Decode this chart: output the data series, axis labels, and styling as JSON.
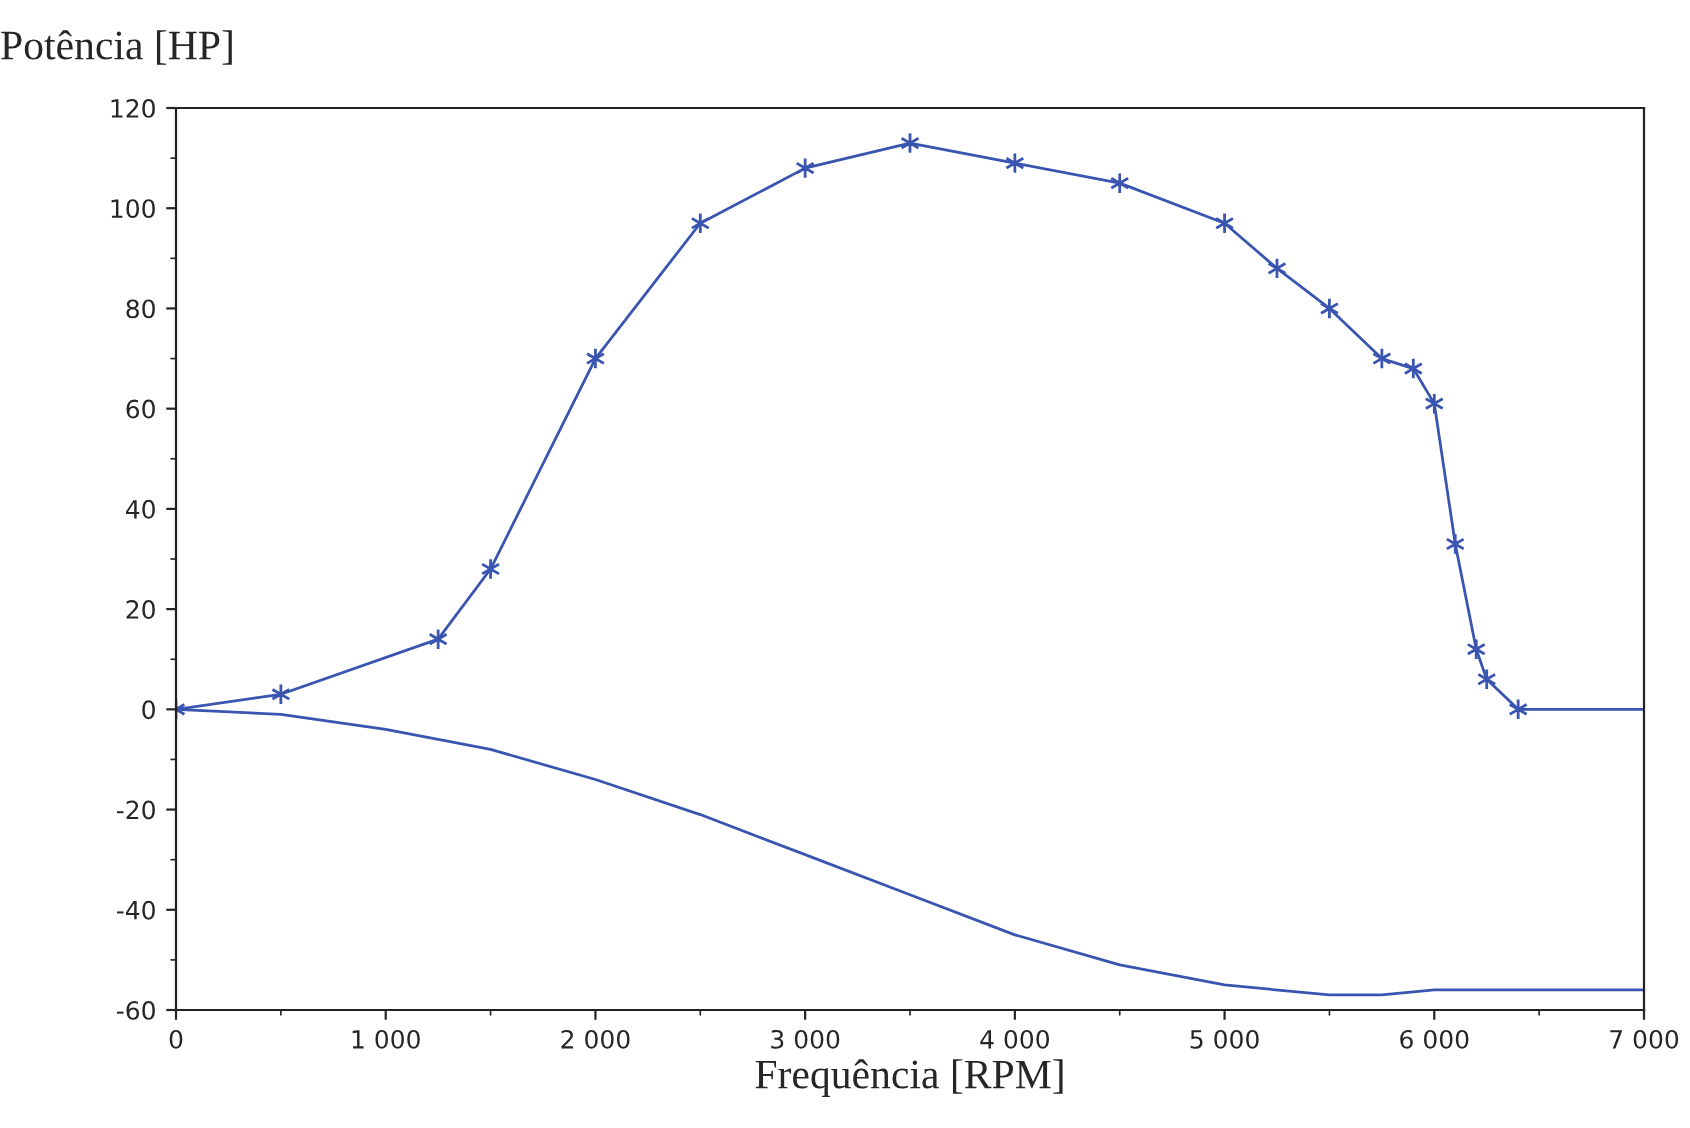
{
  "chart_data": {
    "type": "line",
    "xlabel": "Frequência [RPM]",
    "ylabel": "Potência [HP]",
    "xlim": [
      0,
      7000
    ],
    "ylim": [
      -60,
      120
    ],
    "xticks": [
      0,
      {
        "value": 1000,
        "label": "1 000"
      },
      {
        "value": 2000,
        "label": "2 000"
      },
      {
        "value": 3000,
        "label": "3 000"
      },
      {
        "value": 4000,
        "label": "4 000"
      },
      {
        "value": 5000,
        "label": "5 000"
      },
      {
        "value": 6000,
        "label": "6 000"
      },
      {
        "value": 7000,
        "label": "7 000"
      }
    ],
    "yticks": [
      -60,
      -40,
      -20,
      0,
      20,
      40,
      60,
      80,
      100,
      120
    ],
    "grid": false,
    "legend": false,
    "line_style": "solid",
    "series": [
      {
        "color": "#3a55b0",
        "marker": "cross",
        "x": [
          0,
          500,
          1250,
          1500,
          2000,
          2500,
          3000,
          3500,
          4000,
          4500,
          5000,
          5250,
          5500,
          5750,
          5900,
          6000,
          6100,
          6200,
          6250,
          6400
        ],
        "values": [
          0,
          3,
          14,
          28,
          70,
          97,
          108,
          113,
          109,
          105,
          97,
          88,
          80,
          70,
          68,
          61,
          33,
          12,
          6,
          0
        ]
      },
      {
        "color": "#3a55b0",
        "marker": "none",
        "x": [
          6400,
          7000
        ],
        "values": [
          0,
          0
        ]
      },
      {
        "color": "#3a55b0",
        "marker": "none",
        "x": [
          0,
          500,
          1000,
          1500,
          2000,
          2500,
          3000,
          3500,
          4000,
          4500,
          5000,
          5500,
          5750,
          6000,
          6500,
          7000
        ],
        "values": [
          0,
          -1,
          -4,
          -8,
          -14,
          -21,
          -29,
          -37,
          -45,
          -51,
          -55,
          -57,
          -57,
          -56,
          -56,
          -56
        ]
      }
    ]
  }
}
